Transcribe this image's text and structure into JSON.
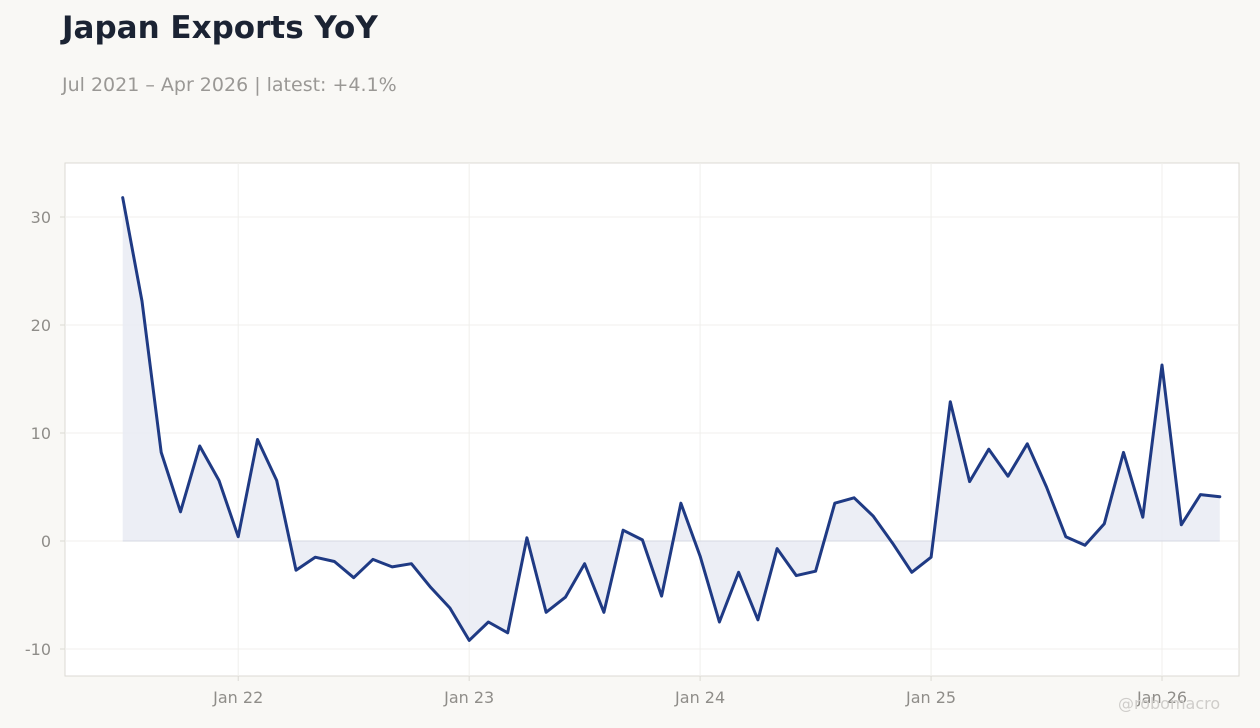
{
  "header": {
    "title": "Japan Exports YoY",
    "subtitle": "Jul 2021 – Apr 2026 | latest: +4.1%"
  },
  "watermark": "@robomacro",
  "colors": {
    "line": "#1f3a84",
    "fill": "#e9ebf3",
    "zero_line": "#d6d8e2",
    "grid": "#f0efec",
    "frame": "#dcdad4",
    "plot_bg": "#ffffff",
    "page_bg": "#f9f8f5"
  },
  "chart_data": {
    "type": "area",
    "title": "Japan Exports YoY",
    "subtitle": "Jul 2021 – Apr 2026 | latest: +4.1%",
    "xlabel": "",
    "ylabel": "",
    "x_start": "2021-07",
    "x_frequency": "monthly",
    "x_ticks": [
      {
        "label": "Jan 22",
        "date": "2022-01"
      },
      {
        "label": "Jan 23",
        "date": "2023-01"
      },
      {
        "label": "Jan 24",
        "date": "2024-01"
      },
      {
        "label": "Jan 25",
        "date": "2025-01"
      },
      {
        "label": "Jan 26",
        "date": "2026-01"
      }
    ],
    "y_ticks": [
      -10,
      0,
      10,
      20,
      30
    ],
    "ylim": [
      -12.5,
      35
    ],
    "xlim": [
      "2021-04",
      "2026-05"
    ],
    "grid": true,
    "legend": "none",
    "series": [
      {
        "values": [
          31.8,
          22.2,
          8.2,
          2.7,
          8.8,
          5.6,
          0.4,
          9.4,
          5.6,
          -2.7,
          -1.5,
          -1.9,
          -3.4,
          -1.7,
          -2.4,
          -2.1,
          -4.3,
          -6.2,
          -9.2,
          -7.5,
          -8.5,
          0.3,
          -6.6,
          -5.2,
          -2.1,
          -6.6,
          1.0,
          0.1,
          -5.1,
          3.5,
          -1.4,
          -7.5,
          -2.9,
          -7.3,
          -0.7,
          -3.2,
          -2.8,
          3.5,
          4.0,
          2.3,
          -0.2,
          -2.9,
          -1.5,
          12.9,
          5.5,
          8.5,
          6.0,
          9.0,
          5.0,
          0.4,
          -0.4,
          1.6,
          8.2,
          2.2,
          16.3,
          1.5,
          4.3,
          4.1
        ]
      }
    ]
  }
}
